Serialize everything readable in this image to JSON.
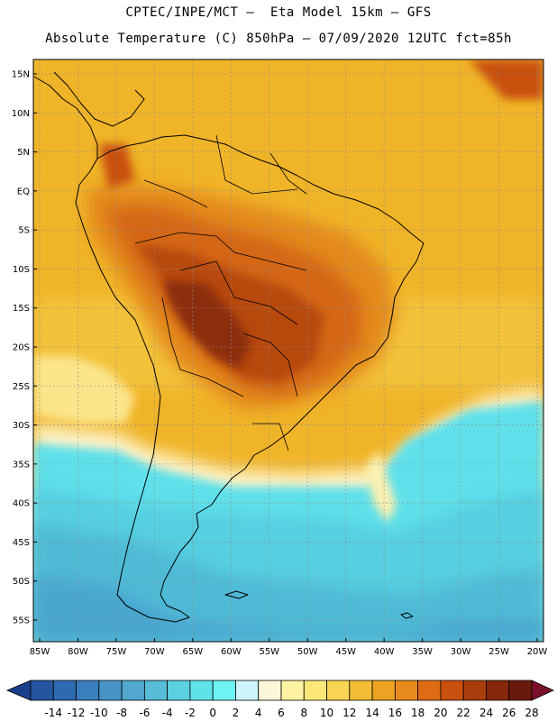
{
  "header": {
    "line1": "CPTEC/INPE/MCT –  Eta Model 15km – GFS",
    "line2": "Absolute Temperature (C) 850hPa – 07/09/2020 12UTC fct=85h"
  },
  "axes": {
    "lat_labels": [
      "15N",
      "10N",
      "5N",
      "EQ",
      "5S",
      "10S",
      "15S",
      "20S",
      "25S",
      "30S",
      "35S",
      "40S",
      "45S",
      "50S",
      "55S"
    ],
    "lon_labels": [
      "85W",
      "80W",
      "75W",
      "70W",
      "65W",
      "60W",
      "55W",
      "50W",
      "45W",
      "40W",
      "35W",
      "30W",
      "25W",
      "20W"
    ],
    "lat_values": [
      15,
      10,
      5,
      0,
      -5,
      -10,
      -15,
      -20,
      -25,
      -30,
      -35,
      -40,
      -45,
      -50,
      -55
    ],
    "lon_values": [
      -85,
      -80,
      -75,
      -70,
      -65,
      -60,
      -55,
      -50,
      -45,
      -40,
      -35,
      -30,
      -25,
      -20
    ],
    "grid": true
  },
  "colorbar": {
    "ticks": [
      "-14",
      "-12",
      "-10",
      "-8",
      "-6",
      "-4",
      "-2",
      "0",
      "2",
      "4",
      "6",
      "8",
      "10",
      "12",
      "14",
      "16",
      "18",
      "20",
      "22",
      "24",
      "26",
      "28"
    ],
    "colors": [
      "#1c3f8c",
      "#24559e",
      "#2e6aaf",
      "#3a7fbd",
      "#4894c7",
      "#52a7cf",
      "#58bcd8",
      "#5bd0e0",
      "#5fe3ea",
      "#6ef3f5",
      "#ccf4fa",
      "#fdf6d8",
      "#fdf3a2",
      "#fce879",
      "#f8d452",
      "#f2bd34",
      "#eda424",
      "#e8891c",
      "#df6c14",
      "#c9500e",
      "#a93d0c",
      "#86280b",
      "#6a1a0c",
      "#7a0f2a"
    ]
  }
}
